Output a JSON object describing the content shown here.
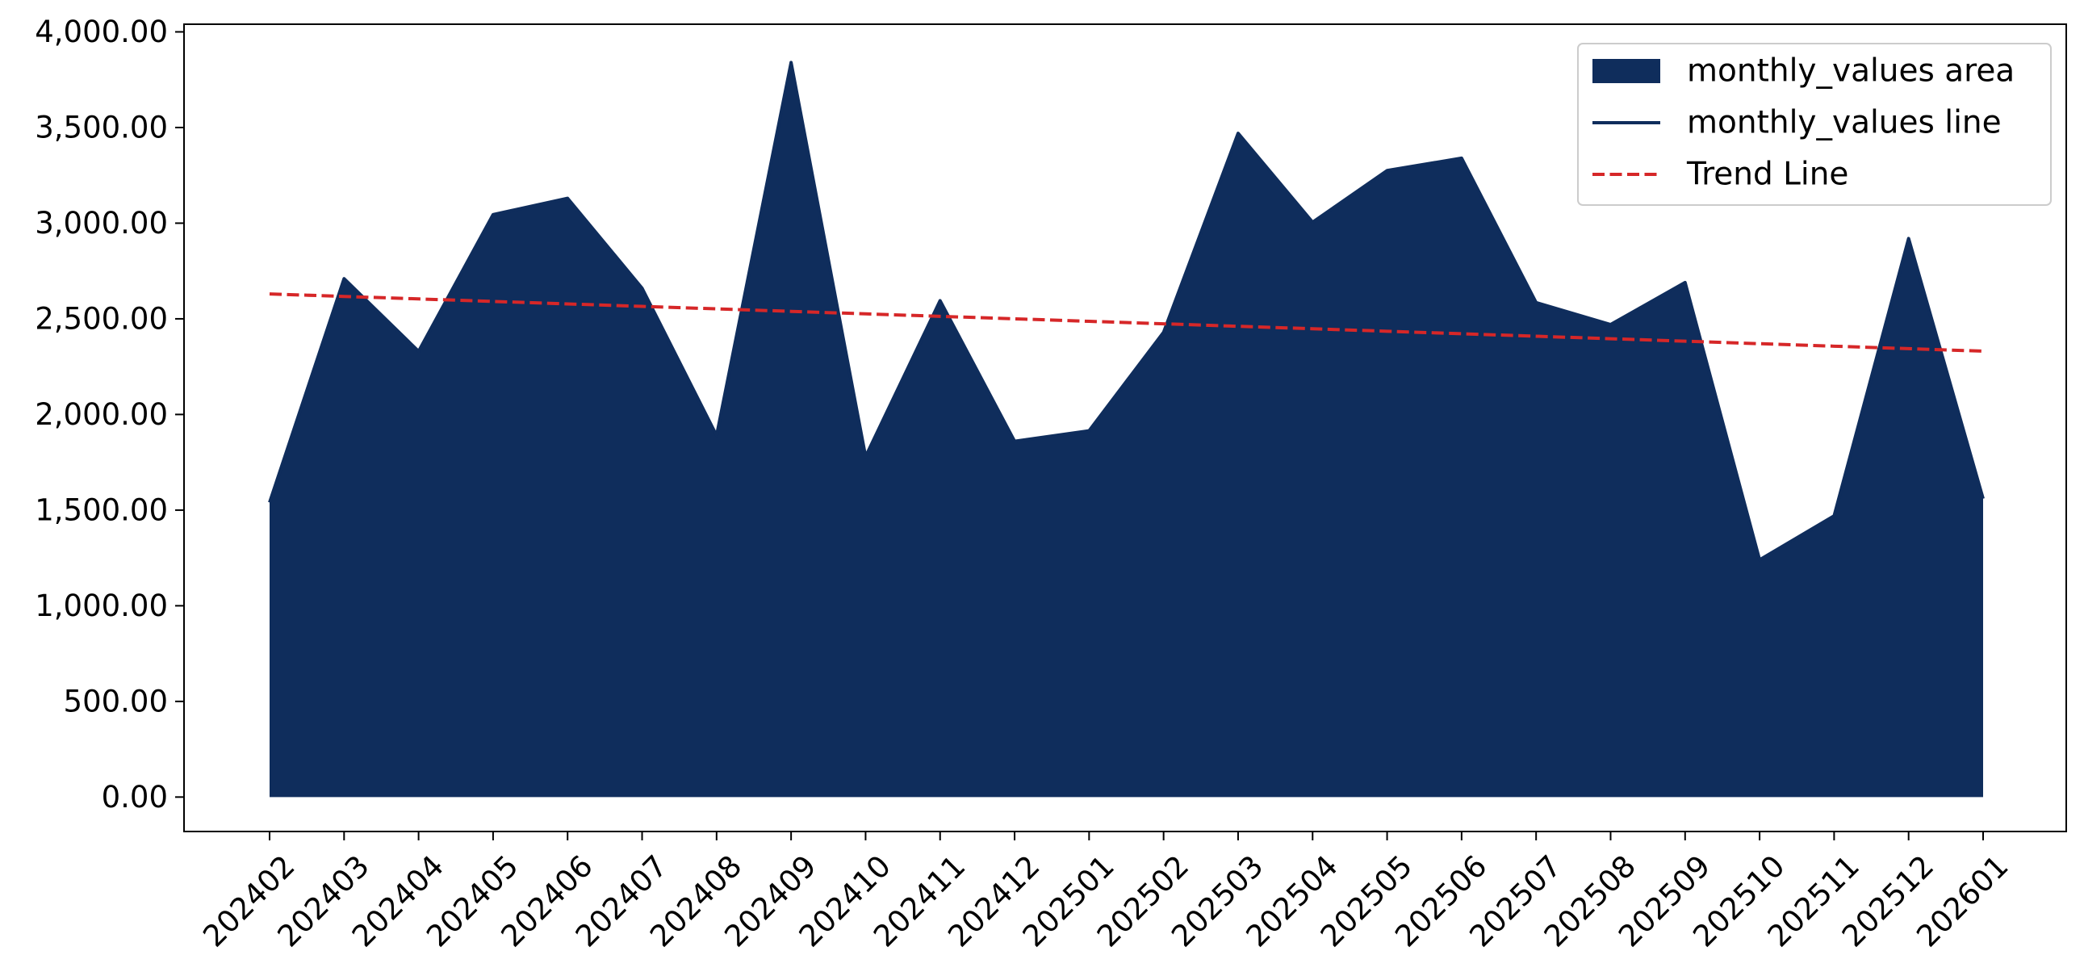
{
  "chart_data": {
    "type": "area",
    "title": "",
    "xlabel": "",
    "ylabel": "",
    "categories": [
      "202402",
      "202403",
      "202404",
      "202405",
      "202406",
      "202407",
      "202408",
      "202409",
      "202410",
      "202411",
      "202412",
      "202501",
      "202502",
      "202503",
      "202504",
      "202505",
      "202506",
      "202507",
      "202508",
      "202509",
      "202510",
      "202511",
      "202512",
      "202601"
    ],
    "series": [
      {
        "name": "monthly_values area",
        "kind": "area",
        "color": "#0f2d5c",
        "values": [
          1540,
          2710,
          2330,
          3045,
          3130,
          2660,
          1890,
          3840,
          1780,
          2595,
          1860,
          1915,
          2430,
          3470,
          3005,
          3275,
          3340,
          2585,
          2470,
          2690,
          1240,
          1470,
          2920,
          1560
        ]
      },
      {
        "name": "monthly_values line",
        "kind": "line",
        "color": "#0f2d5c",
        "values": [
          1540,
          2710,
          2330,
          3045,
          3130,
          2660,
          1890,
          3840,
          1780,
          2595,
          1860,
          1915,
          2430,
          3470,
          3005,
          3275,
          3340,
          2585,
          2470,
          2690,
          1240,
          1470,
          2920,
          1560
        ]
      },
      {
        "name": "Trend Line",
        "kind": "line",
        "style": "dashed",
        "color": "#d62728",
        "values": [
          2630,
          2617,
          2604,
          2591,
          2578,
          2565,
          2552,
          2539,
          2526,
          2513,
          2500,
          2487,
          2474,
          2461,
          2448,
          2435,
          2422,
          2409,
          2396,
          2383,
          2370,
          2357,
          2344,
          2331
        ]
      }
    ],
    "ylim": [
      -180,
      4040
    ],
    "yticks": [
      0,
      500,
      1000,
      1500,
      2000,
      2500,
      3000,
      3500,
      4000
    ],
    "ytick_labels": [
      "0.00",
      "500.00",
      "1,000.00",
      "1,500.00",
      "2,000.00",
      "2,500.00",
      "3,000.00",
      "3,500.00",
      "4,000.00"
    ],
    "grid": false,
    "legend_position": "top-right",
    "legend": [
      "monthly_values area",
      "monthly_values line",
      "Trend Line"
    ]
  }
}
